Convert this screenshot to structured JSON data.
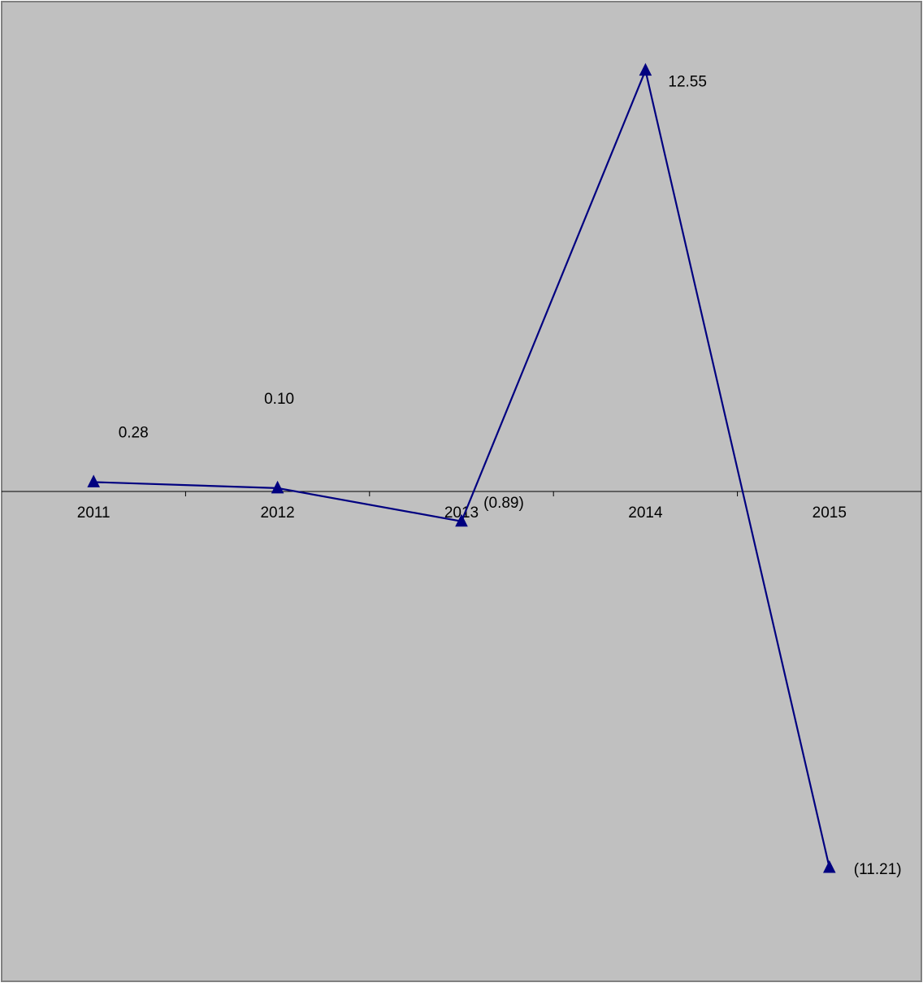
{
  "chart_data": {
    "type": "line",
    "title": "",
    "xlabel": "",
    "ylabel": "",
    "categories": [
      "2011",
      "2012",
      "2013",
      "2014",
      "2015"
    ],
    "series": [
      {
        "values": [
          0.28,
          0.1,
          -0.89,
          12.55,
          -11.21
        ],
        "value_labels": [
          "0.28",
          "0.10",
          "(0.89)",
          "12.55",
          "(11.21)"
        ],
        "marker": "triangle",
        "color": "#000080"
      }
    ],
    "ylim": [
      -14.6,
      14.6
    ],
    "grid": false,
    "legend": "none",
    "background_color": "#c0c0c0",
    "border_color": "#808080"
  }
}
